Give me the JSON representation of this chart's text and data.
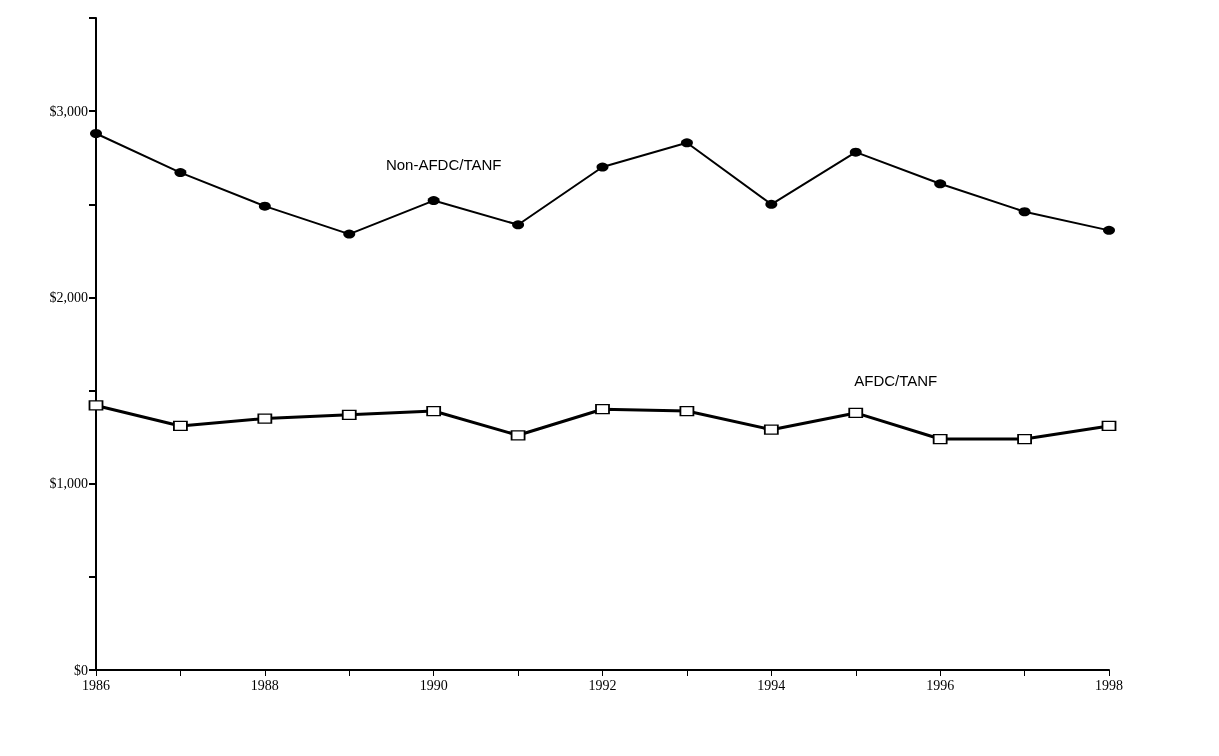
{
  "chart_data": {
    "type": "line",
    "x": [
      1986,
      1987,
      1988,
      1989,
      1990,
      1991,
      1992,
      1993,
      1994,
      1995,
      1996,
      1997,
      1998
    ],
    "series": [
      {
        "name": "Non-AFDC/TANF",
        "color": "#000000",
        "marker": "circle",
        "values": [
          2880,
          2670,
          2490,
          2340,
          2520,
          2390,
          2700,
          2830,
          2500,
          2780,
          2610,
          2460,
          2360
        ]
      },
      {
        "name": "AFDC/TANF",
        "color": "#000000",
        "marker": "square",
        "values": [
          1420,
          1310,
          1350,
          1370,
          1390,
          1260,
          1400,
          1390,
          1290,
          1380,
          1240,
          1240,
          1310
        ]
      }
    ],
    "xlim": [
      1986,
      1998
    ],
    "xticks": [
      1986,
      {
        "value": 1987,
        "label": null
      },
      1988,
      {
        "value": 1989,
        "label": null
      },
      1990,
      {
        "value": 1991,
        "label": null
      },
      1992,
      {
        "value": 1993,
        "label": null
      },
      1994,
      {
        "value": 1995,
        "label": null
      },
      1996,
      {
        "value": 1997,
        "label": null
      },
      1998
    ],
    "ylim": [
      0,
      3500
    ],
    "yticks": [
      {
        "value": 0,
        "label": "$0"
      },
      {
        "value": 500,
        "label": null
      },
      {
        "value": 1000,
        "label": "$1,000"
      },
      {
        "value": 1500,
        "label": null
      },
      {
        "value": 2000,
        "label": "$2,000"
      },
      {
        "value": 2500,
        "label": null
      },
      {
        "value": 3000,
        "label": "$3,000"
      },
      {
        "value": 3500,
        "label": null
      }
    ],
    "grid": false,
    "legend": false,
    "line_style": "solid"
  }
}
